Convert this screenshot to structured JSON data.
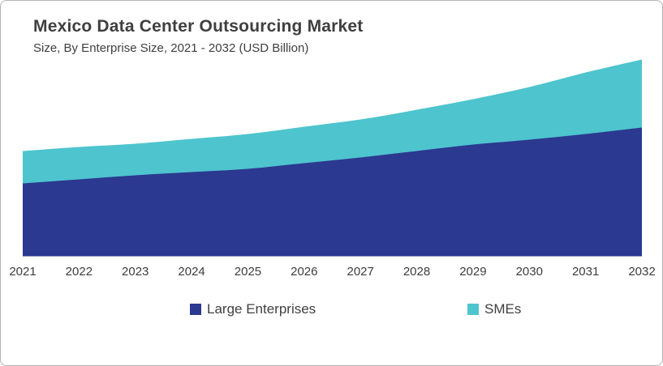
{
  "header": {
    "title": "Mexico Data Center Outsourcing Market",
    "subtitle": "Size, By Enterprise Size, 2021 - 2032 (USD Billion)"
  },
  "chart_data": {
    "type": "area",
    "stacked": true,
    "title": "Mexico Data Center Outsourcing Market",
    "subtitle": "Size, By Enterprise Size, 2021 - 2032 (USD Billion)",
    "unit": "USD Billion",
    "categories": [
      "2021",
      "2022",
      "2023",
      "2024",
      "2025",
      "2026",
      "2027",
      "2028",
      "2029",
      "2030",
      "2031",
      "2032"
    ],
    "series": [
      {
        "name": "Large Enterprises",
        "color": "#2B3990",
        "values": [
          0.9,
          0.95,
          1.0,
          1.04,
          1.08,
          1.15,
          1.22,
          1.3,
          1.38,
          1.44,
          1.51,
          1.59
        ]
      },
      {
        "name": "SMEs",
        "color": "#4EC4CE",
        "values": [
          0.4,
          0.4,
          0.39,
          0.41,
          0.43,
          0.45,
          0.47,
          0.51,
          0.56,
          0.65,
          0.76,
          0.84
        ]
      }
    ],
    "totals": [
      1.3,
      1.35,
      1.39,
      1.45,
      1.51,
      1.6,
      1.69,
      1.81,
      1.94,
      2.09,
      2.27,
      2.43
    ],
    "y_axis_visible": false,
    "gridlines": false,
    "x_axis_line": false,
    "legend_position": "bottom"
  },
  "legend": {
    "items": [
      {
        "label": "Large Enterprises",
        "color": "#2B3990"
      },
      {
        "label": "SMEs",
        "color": "#4EC4CE"
      }
    ]
  }
}
